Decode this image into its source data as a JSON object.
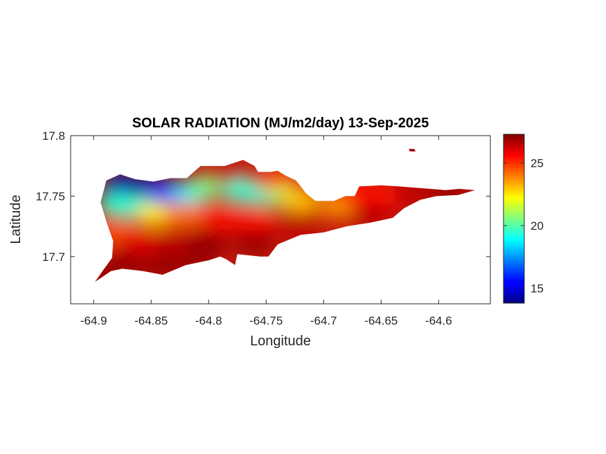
{
  "chart_data": {
    "type": "heatmap",
    "title": "SOLAR RADIATION (MJ/m2/day) 13-Sep-2025",
    "xlabel": "Longitude",
    "ylabel": "Latitude",
    "xlim": [
      -64.92,
      -64.555
    ],
    "ylim": [
      17.661,
      17.8
    ],
    "xticks": [
      -64.9,
      -64.85,
      -64.8,
      -64.75,
      -64.7,
      -64.65,
      -64.6
    ],
    "xtick_labels": [
      "-64.9",
      "-64.85",
      "-64.8",
      "-64.75",
      "-64.7",
      "-64.65",
      "-64.6"
    ],
    "yticks": [
      17.7,
      17.75,
      17.8
    ],
    "ytick_labels": [
      "17.7",
      "17.75",
      "17.8"
    ],
    "colorbar": {
      "colormap": "jet",
      "range": [
        13.8,
        27.3
      ],
      "ticks": [
        15,
        20,
        25
      ],
      "tick_labels": [
        "15",
        "20",
        "25"
      ]
    },
    "grid": false,
    "region_outline": [
      [
        -64.899,
        17.679
      ],
      [
        -64.893,
        17.687
      ],
      [
        -64.884,
        17.699
      ],
      [
        -64.883,
        17.713
      ],
      [
        -64.889,
        17.729
      ],
      [
        -64.894,
        17.745
      ],
      [
        -64.889,
        17.763
      ],
      [
        -64.877,
        17.768
      ],
      [
        -64.864,
        17.764
      ],
      [
        -64.848,
        17.762
      ],
      [
        -64.833,
        17.765
      ],
      [
        -64.819,
        17.765
      ],
      [
        -64.807,
        17.775
      ],
      [
        -64.786,
        17.775
      ],
      [
        -64.77,
        17.78
      ],
      [
        -64.76,
        17.775
      ],
      [
        -64.757,
        17.77
      ],
      [
        -64.746,
        17.77
      ],
      [
        -64.74,
        17.771
      ],
      [
        -64.733,
        17.767
      ],
      [
        -64.724,
        17.763
      ],
      [
        -64.715,
        17.752
      ],
      [
        -64.707,
        17.746
      ],
      [
        -64.691,
        17.746
      ],
      [
        -64.681,
        17.75
      ],
      [
        -64.673,
        17.75
      ],
      [
        -64.669,
        17.758
      ],
      [
        -64.65,
        17.759
      ],
      [
        -64.634,
        17.758
      ],
      [
        -64.62,
        17.757
      ],
      [
        -64.607,
        17.756
      ],
      [
        -64.594,
        17.755
      ],
      [
        -64.582,
        17.756
      ],
      [
        -64.568,
        17.755
      ],
      [
        -64.583,
        17.751
      ],
      [
        -64.602,
        17.75
      ],
      [
        -64.616,
        17.747
      ],
      [
        -64.63,
        17.74
      ],
      [
        -64.64,
        17.732
      ],
      [
        -64.66,
        17.728
      ],
      [
        -64.68,
        17.725
      ],
      [
        -64.7,
        17.72
      ],
      [
        -64.72,
        17.718
      ],
      [
        -64.74,
        17.71
      ],
      [
        -64.748,
        17.7
      ],
      [
        -64.755,
        17.7
      ],
      [
        -64.775,
        17.702
      ],
      [
        -64.777,
        17.693
      ],
      [
        -64.785,
        17.698
      ],
      [
        -64.79,
        17.7
      ],
      [
        -64.8,
        17.697
      ],
      [
        -64.82,
        17.693
      ],
      [
        -64.84,
        17.685
      ],
      [
        -64.857,
        17.688
      ],
      [
        -64.875,
        17.69
      ],
      [
        -64.885,
        17.688
      ]
    ],
    "islet_outline": [
      [
        -64.626,
        17.789
      ],
      [
        -64.621,
        17.789
      ],
      [
        -64.62,
        17.787
      ],
      [
        -64.625,
        17.787
      ]
    ],
    "value_samples": [
      {
        "lon": -64.875,
        "lat": 17.76,
        "value": 14.5
      },
      {
        "lon": -64.855,
        "lat": 17.757,
        "value": 14.2
      },
      {
        "lon": -64.835,
        "lat": 17.753,
        "value": 15.5
      },
      {
        "lon": -64.815,
        "lat": 17.753,
        "value": 18.5
      },
      {
        "lon": -64.8,
        "lat": 17.758,
        "value": 20.5
      },
      {
        "lon": -64.78,
        "lat": 17.765,
        "value": 26.5
      },
      {
        "lon": -64.77,
        "lat": 17.754,
        "value": 19.5
      },
      {
        "lon": -64.75,
        "lat": 17.752,
        "value": 19.5
      },
      {
        "lon": -64.74,
        "lat": 17.762,
        "value": 24.5
      },
      {
        "lon": -64.73,
        "lat": 17.749,
        "value": 21
      },
      {
        "lon": -64.72,
        "lat": 17.747,
        "value": 23
      },
      {
        "lon": -64.685,
        "lat": 17.742,
        "value": 23.5
      },
      {
        "lon": -64.67,
        "lat": 17.752,
        "value": 25.5
      },
      {
        "lon": -64.65,
        "lat": 17.75,
        "value": 25.5
      },
      {
        "lon": -64.62,
        "lat": 17.752,
        "value": 26.5
      },
      {
        "lon": -64.59,
        "lat": 17.753,
        "value": 27
      },
      {
        "lon": -64.88,
        "lat": 17.743,
        "value": 19.5
      },
      {
        "lon": -64.86,
        "lat": 17.74,
        "value": 19.5
      },
      {
        "lon": -64.845,
        "lat": 17.735,
        "value": 22.5
      },
      {
        "lon": -64.82,
        "lat": 17.735,
        "value": 24
      },
      {
        "lon": -64.79,
        "lat": 17.732,
        "value": 25.5
      },
      {
        "lon": -64.76,
        "lat": 17.73,
        "value": 25.5
      },
      {
        "lon": -64.72,
        "lat": 17.728,
        "value": 26.5
      },
      {
        "lon": -64.66,
        "lat": 17.735,
        "value": 26.5
      },
      {
        "lon": -64.88,
        "lat": 17.72,
        "value": 24.5
      },
      {
        "lon": -64.86,
        "lat": 17.712,
        "value": 26
      },
      {
        "lon": -64.83,
        "lat": 17.71,
        "value": 26.5
      },
      {
        "lon": -64.8,
        "lat": 17.712,
        "value": 27
      },
      {
        "lon": -64.76,
        "lat": 17.712,
        "value": 27
      },
      {
        "lon": -64.87,
        "lat": 17.695,
        "value": 27
      },
      {
        "lon": -64.84,
        "lat": 17.692,
        "value": 27
      },
      {
        "lon": -64.81,
        "lat": 17.698,
        "value": 27
      },
      {
        "lon": -64.89,
        "lat": 17.685,
        "value": 27
      },
      {
        "lon": -64.623,
        "lat": 17.788,
        "value": 27
      }
    ]
  }
}
